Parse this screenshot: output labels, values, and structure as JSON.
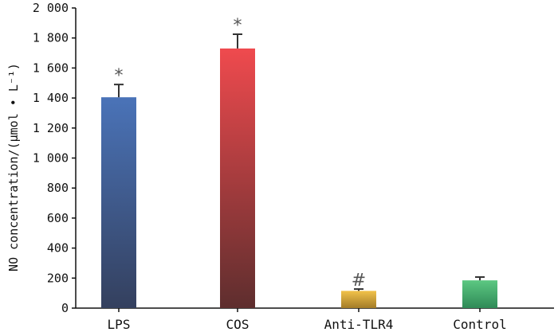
{
  "chart_data": {
    "type": "bar",
    "categories": [
      "LPS",
      "COS",
      "Anti-TLR4",
      "Control"
    ],
    "values": [
      1405,
      1730,
      115,
      185
    ],
    "errors": [
      85,
      95,
      12,
      22
    ],
    "annotations": [
      "*",
      "*",
      "#",
      ""
    ],
    "ylabel": "NO concentration/(μmol • L⁻¹)",
    "ylim": [
      0,
      2000
    ],
    "yticks": [
      0,
      200,
      400,
      600,
      800,
      1000,
      1200,
      1400,
      1600,
      1800,
      2000
    ],
    "ytick_labels": [
      "0",
      "200",
      "400",
      "600",
      "800",
      "1 000",
      "1 200",
      "1 400",
      "1 600",
      "1 800",
      "2 000"
    ],
    "grid": false,
    "colors": {
      "LPS": [
        "#4a73b8",
        "#34405e"
      ],
      "COS": [
        "#ef4a4e",
        "#5e2e2e"
      ],
      "Anti-TLR4": [
        "#f2c24a",
        "#a37c28"
      ],
      "Control": [
        "#5cc882",
        "#2f8a57"
      ]
    }
  }
}
